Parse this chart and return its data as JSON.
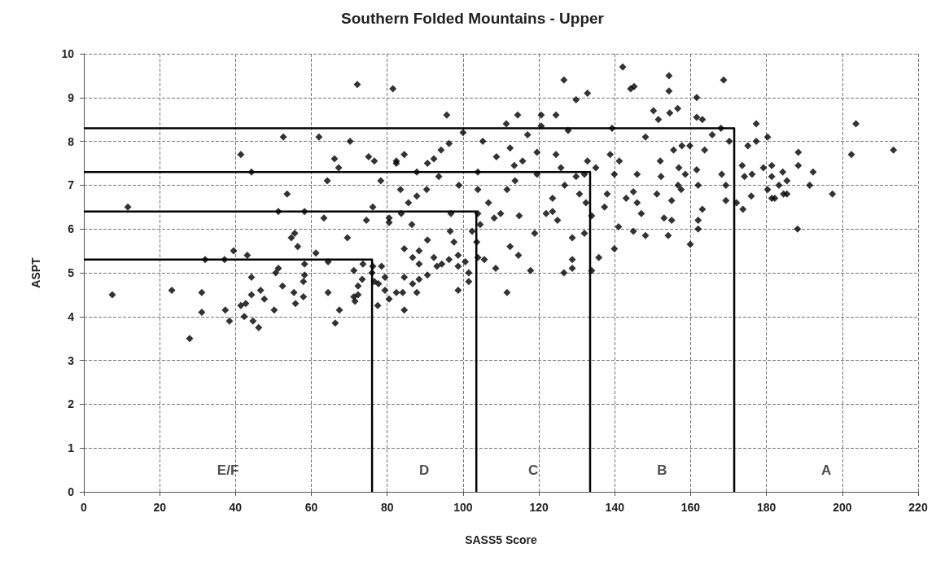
{
  "chart_data": {
    "type": "scatter",
    "title": "Southern Folded Mountains - Upper",
    "xlabel": "SASS5 Score",
    "ylabel": "ASPT",
    "xlim": [
      0,
      220
    ],
    "ylim": [
      0,
      10
    ],
    "xticks": [
      0,
      20,
      40,
      60,
      80,
      100,
      120,
      140,
      160,
      180,
      200,
      220
    ],
    "yticks": [
      0,
      1,
      2,
      3,
      4,
      5,
      6,
      7,
      8,
      9,
      10
    ],
    "grid": true,
    "marker": "diamond",
    "annotations": [
      "E/F",
      "D",
      "C",
      "B",
      "A"
    ],
    "series": [
      {
        "color": "#000000",
        "x": [
          52.6,
          41.4,
          44.2,
          53.6,
          11.6,
          51.3,
          58.2,
          55.6,
          54.7,
          56.4,
          39.5,
          43.1,
          32.0,
          37.1,
          58.2,
          50.6,
          51.3,
          44.2,
          52.4,
          57.9,
          7.5,
          23.2,
          31.1,
          46.6,
          44.2,
          47.6,
          55.4,
          55.8,
          57.9,
          41.4,
          42.7,
          37.3,
          50.2,
          31.1,
          42.3,
          38.4,
          44.6,
          46.1,
          27.9,
          72.1,
          81.5,
          95.7,
          62.0,
          70.2,
          100.0,
          111.4,
          114.4,
          105.2,
          117.0,
          66.1,
          67.2,
          75.1,
          76.6,
          82.4,
          82.4,
          84.5,
          90.6,
          92.3,
          94.2,
          96.3,
          87.8,
          93.6,
          103.9,
          112.4,
          108.8,
          113.5,
          115.7,
          64.2,
          78.3,
          83.5,
          90.4,
          98.9,
          103.9,
          111.6,
          113.7,
          87.8,
          85.6,
          106.7,
          76.2,
          83.7,
          63.3,
          74.5,
          80.5,
          80.5,
          86.5,
          96.8,
          103.9,
          108.2,
          109.9,
          114.8,
          104.5,
          96.6,
          102.4,
          69.5,
          90.6,
          97.6,
          103.6,
          84.5,
          88.4,
          112.4,
          114.6,
          61.2,
          64.4,
          86.7,
          92.3,
          98.7,
          96.3,
          103.9,
          73.6,
          76.2,
          78.5,
          88.4,
          93.1,
          94.4,
          98.7,
          100.6,
          105.6,
          108.6,
          71.2,
          76.0,
          79.4,
          84.5,
          90.6,
          101.5,
          58.2,
          73.4,
          76.6,
          77.7,
          86.7,
          88.4,
          101.5,
          72.3,
          79.4,
          82.4,
          84.1,
          87.8,
          98.7,
          111.6,
          64.4,
          71.2,
          72.3,
          71.5,
          80.5,
          77.5,
          67.4,
          84.5,
          66.3,
          142.1,
          126.6,
          154.3,
          168.7,
          132.8,
          144.2,
          145.1,
          154.3,
          161.6,
          129.8,
          120.6,
          124.5,
          150.2,
          154.5,
          156.6,
          151.5,
          161.6,
          163.1,
          120.6,
          127.7,
          139.3,
          168.0,
          165.7,
          148.1,
          170.2,
          119.5,
          124.5,
          138.8,
          155.5,
          157.7,
          159.8,
          163.7,
          132.8,
          141.2,
          152.0,
          125.8,
          135.0,
          156.9,
          161.6,
          173.6,
          119.5,
          132.0,
          139.9,
          145.9,
          158.6,
          168.2,
          129.8,
          152.2,
          174.2,
          126.8,
          156.7,
          157.5,
          162.0,
          169.3,
          130.7,
          138.0,
          144.9,
          151.1,
          123.6,
          143.0,
          155.0,
          169.3,
          132.4,
          145.9,
          137.3,
          163.1,
          172.1,
          173.8,
          121.9,
          123.6,
          133.9,
          147.0,
          153.0,
          124.9,
          155.0,
          162.0,
          141.0,
          162.0,
          132.0,
          118.9,
          128.8,
          144.9,
          148.1,
          154.1,
          159.9,
          139.9,
          135.8,
          128.8,
          117.8,
          126.6,
          128.8,
          133.9,
          177.3,
          203.6,
          180.3,
          177.3,
          175.1,
          188.4,
          202.4,
          213.5,
          181.4,
          188.4,
          179.2,
          192.3,
          176.2,
          184.3,
          181.4,
          185.4,
          183.3,
          191.4,
          180.3,
          176.0,
          181.4,
          182.2,
          184.5,
          185.4,
          197.4,
          188.2
        ],
        "values": [
          8.1,
          7.7,
          7.3,
          6.8,
          6.5,
          6.4,
          6.4,
          5.9,
          5.8,
          5.6,
          5.5,
          5.4,
          5.3,
          5.3,
          5.2,
          5.0,
          5.1,
          4.9,
          4.7,
          4.8,
          4.5,
          4.6,
          4.55,
          4.6,
          4.5,
          4.4,
          4.55,
          4.3,
          4.45,
          4.25,
          4.3,
          4.15,
          4.15,
          4.1,
          4.0,
          3.9,
          3.9,
          3.75,
          3.5,
          9.3,
          9.2,
          8.6,
          8.1,
          8.0,
          8.2,
          8.4,
          8.6,
          8.0,
          8.15,
          7.6,
          7.4,
          7.65,
          7.55,
          7.55,
          7.5,
          7.7,
          7.5,
          7.6,
          7.8,
          7.95,
          7.3,
          7.2,
          7.3,
          7.85,
          7.65,
          7.45,
          7.55,
          7.1,
          7.1,
          6.9,
          6.9,
          7.0,
          6.9,
          6.9,
          7.1,
          6.75,
          6.6,
          6.6,
          6.5,
          6.35,
          6.25,
          6.2,
          6.25,
          6.15,
          6.1,
          6.35,
          6.35,
          6.25,
          6.35,
          6.3,
          6.1,
          5.95,
          5.95,
          5.8,
          5.75,
          5.7,
          5.7,
          5.55,
          5.5,
          5.6,
          5.4,
          5.45,
          5.25,
          5.35,
          5.35,
          5.4,
          5.3,
          5.35,
          5.2,
          5.15,
          5.15,
          5.2,
          5.15,
          5.2,
          5.15,
          5.25,
          5.3,
          5.1,
          5.05,
          5.0,
          4.9,
          4.9,
          4.95,
          5.0,
          4.95,
          4.85,
          4.8,
          4.75,
          4.75,
          4.85,
          4.8,
          4.7,
          4.6,
          4.55,
          4.55,
          4.55,
          4.6,
          4.55,
          4.55,
          4.45,
          4.5,
          4.35,
          4.4,
          4.25,
          4.15,
          4.15,
          3.85,
          9.7,
          9.4,
          9.5,
          9.4,
          9.1,
          9.2,
          9.25,
          9.15,
          9.0,
          8.95,
          8.6,
          8.6,
          8.7,
          8.65,
          8.75,
          8.5,
          8.55,
          8.5,
          8.35,
          8.25,
          8.3,
          8.3,
          8.15,
          8.1,
          8.0,
          7.75,
          7.7,
          7.7,
          7.8,
          7.9,
          7.9,
          7.8,
          7.55,
          7.55,
          7.55,
          7.4,
          7.4,
          7.4,
          7.35,
          7.45,
          7.25,
          7.25,
          7.25,
          7.25,
          7.25,
          7.25,
          7.2,
          7.2,
          7.2,
          7.0,
          7.0,
          6.9,
          7.0,
          7.0,
          6.8,
          6.8,
          6.85,
          6.8,
          6.7,
          6.7,
          6.65,
          6.65,
          6.6,
          6.6,
          6.5,
          6.45,
          6.6,
          6.45,
          6.35,
          6.4,
          6.3,
          6.35,
          6.25,
          6.2,
          6.2,
          6.2,
          6.05,
          6.0,
          5.9,
          5.9,
          5.8,
          5.95,
          5.85,
          5.85,
          5.65,
          5.55,
          5.35,
          5.3,
          5.05,
          5.0,
          5.1,
          5.05,
          8.4,
          8.4,
          8.1,
          8.0,
          7.9,
          7.75,
          7.7,
          7.8,
          7.45,
          7.45,
          7.4,
          7.3,
          7.25,
          7.3,
          7.2,
          7.1,
          7.0,
          7.0,
          6.9,
          6.75,
          6.7,
          6.7,
          6.8,
          6.8,
          6.8,
          6.0
        ]
      },
      {
        "type": "line",
        "color": "#000000",
        "marker": "none",
        "x": [
          0,
          76,
          76
        ],
        "values": [
          5.3,
          5.3,
          0
        ]
      },
      {
        "type": "line",
        "color": "#000000",
        "marker": "none",
        "x": [
          0,
          103.5,
          103.5
        ],
        "values": [
          6.4,
          6.4,
          0
        ]
      },
      {
        "type": "line",
        "color": "#000000",
        "marker": "none",
        "x": [
          0,
          133.5,
          133.5
        ],
        "values": [
          7.3,
          7.3,
          0
        ]
      },
      {
        "type": "line",
        "color": "#000000",
        "marker": "none",
        "x": [
          0,
          171.5,
          171.5
        ],
        "values": [
          8.3,
          8.3,
          0
        ]
      }
    ]
  }
}
